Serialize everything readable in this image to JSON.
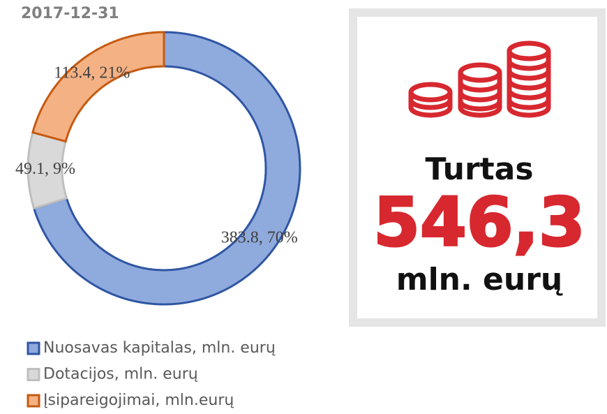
{
  "chart_data": {
    "type": "donut",
    "title": "2017-12-31",
    "categories": [
      "Nuosavas kapitalas, mln. eurų",
      "Dotacijos, mln. eurų",
      "Įsipareigojimai, mln.eurų"
    ],
    "values": [
      383.8,
      49.1,
      113.4
    ],
    "value_labels": [
      "383.8, 70%",
      "49.1, 9%",
      "113.4, 21%"
    ],
    "colors": [
      "#8faadc",
      "#d9d9d9",
      "#f4b183"
    ],
    "edge_colors": [
      "#2f55a4",
      "#bfbfbf",
      "#c55a11"
    ],
    "legend": "bottom"
  },
  "card": {
    "label": "Turtas",
    "value": "546,3",
    "unit": "mln. eurų"
  }
}
